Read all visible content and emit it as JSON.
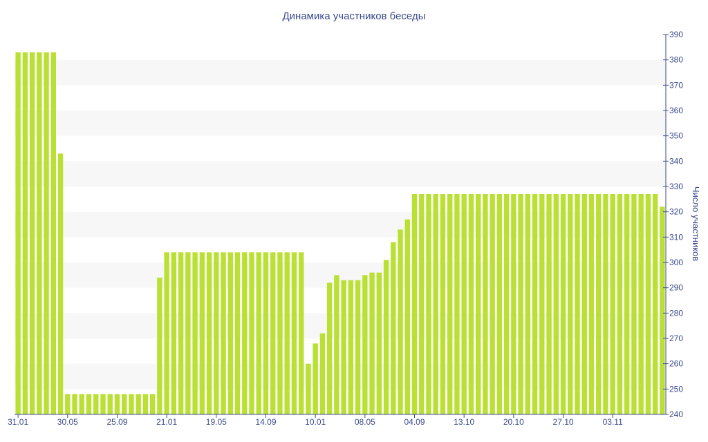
{
  "chart_data": {
    "type": "bar",
    "title": "Динамика участников беседы",
    "xlabel": "",
    "ylabel": "Число участников",
    "ylim": [
      240,
      390
    ],
    "yticks": [
      240,
      250,
      260,
      270,
      280,
      290,
      300,
      310,
      320,
      330,
      340,
      350,
      360,
      370,
      380,
      390
    ],
    "y_axis_side": "right",
    "grid": "horizontal alternating bands",
    "legend": "none",
    "bar_color": "#b9e033",
    "band_color": "#f7f7f7",
    "text_color": "#3b4a8c",
    "x_tick_labels": [
      {
        "label": "31.01",
        "index": 0
      },
      {
        "label": "30.05",
        "index": 7
      },
      {
        "label": "25.09",
        "index": 14
      },
      {
        "label": "21.01",
        "index": 21
      },
      {
        "label": "19.05",
        "index": 28
      },
      {
        "label": "14.09",
        "index": 35
      },
      {
        "label": "10.01",
        "index": 42
      },
      {
        "label": "08.05",
        "index": 49
      },
      {
        "label": "04.09",
        "index": 56
      },
      {
        "label": "13.10",
        "index": 63
      },
      {
        "label": "20.10",
        "index": 70
      },
      {
        "label": "27.10",
        "index": 77
      },
      {
        "label": "03.11",
        "index": 84
      }
    ],
    "values": [
      383,
      383,
      383,
      383,
      383,
      383,
      343,
      248,
      248,
      248,
      248,
      248,
      248,
      248,
      248,
      248,
      248,
      248,
      248,
      248,
      294,
      304,
      304,
      304,
      304,
      304,
      304,
      304,
      304,
      304,
      304,
      304,
      304,
      304,
      304,
      304,
      304,
      304,
      304,
      304,
      304,
      260,
      268,
      272,
      292,
      295,
      293,
      293,
      293,
      295,
      296,
      296,
      301,
      308,
      313,
      317,
      327,
      327,
      327,
      327,
      327,
      327,
      327,
      327,
      327,
      327,
      327,
      327,
      327,
      327,
      327,
      327,
      327,
      327,
      327,
      327,
      327,
      327,
      327,
      327,
      327,
      327,
      327,
      327,
      327,
      327,
      327,
      327,
      327,
      327,
      327,
      322
    ]
  }
}
